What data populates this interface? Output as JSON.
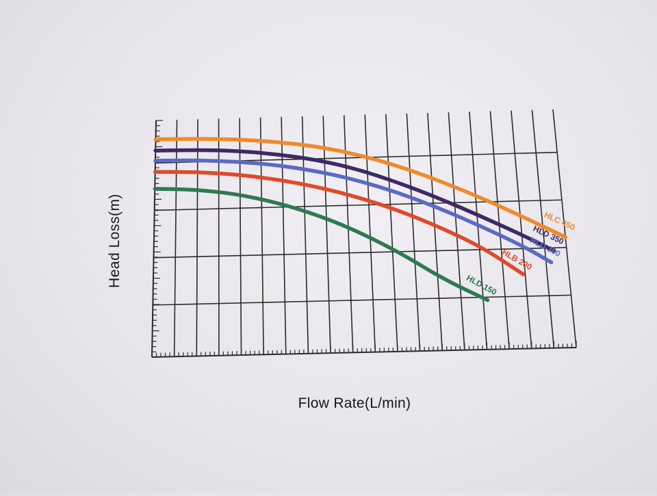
{
  "chart_data": {
    "type": "line",
    "title": "",
    "xlabel": "Flow Rate(L/min)",
    "ylabel": "Head Loss(m)",
    "tick_labels_shown": false,
    "grid": true,
    "series": [
      {
        "name": "HLC 450",
        "color": "#f08a2c",
        "x": [
          0,
          0.1,
          0.2,
          0.3,
          0.4,
          0.5,
          0.6,
          0.7,
          0.8,
          0.9,
          1.0
        ],
        "y": [
          1.0,
          0.998,
          0.99,
          0.975,
          0.95,
          0.91,
          0.855,
          0.785,
          0.705,
          0.615,
          0.52
        ]
      },
      {
        "name": "HLD 350",
        "color": "#3d2a63",
        "x": [
          0,
          0.1,
          0.2,
          0.3,
          0.4,
          0.5,
          0.6,
          0.7,
          0.8,
          0.9,
          0.97
        ],
        "y": [
          0.95,
          0.948,
          0.94,
          0.92,
          0.89,
          0.845,
          0.78,
          0.705,
          0.62,
          0.53,
          0.46
        ]
      },
      {
        "name": "HLD 300",
        "color": "#5b6bc4",
        "x": [
          0,
          0.1,
          0.2,
          0.3,
          0.4,
          0.5,
          0.6,
          0.7,
          0.8,
          0.9,
          0.96
        ],
        "y": [
          0.905,
          0.902,
          0.892,
          0.872,
          0.84,
          0.795,
          0.735,
          0.66,
          0.575,
          0.48,
          0.41
        ]
      },
      {
        "name": "HLB 200",
        "color": "#e04a2a",
        "x": [
          0,
          0.1,
          0.2,
          0.3,
          0.4,
          0.5,
          0.6,
          0.7,
          0.8,
          0.89
        ],
        "y": [
          0.855,
          0.85,
          0.835,
          0.808,
          0.77,
          0.72,
          0.655,
          0.575,
          0.48,
          0.36
        ]
      },
      {
        "name": "HLD 150",
        "color": "#2e7a52",
        "x": [
          0,
          0.1,
          0.2,
          0.3,
          0.4,
          0.5,
          0.6,
          0.7,
          0.8
        ],
        "y": [
          0.78,
          0.772,
          0.748,
          0.705,
          0.645,
          0.565,
          0.465,
          0.345,
          0.25
        ]
      }
    ]
  }
}
